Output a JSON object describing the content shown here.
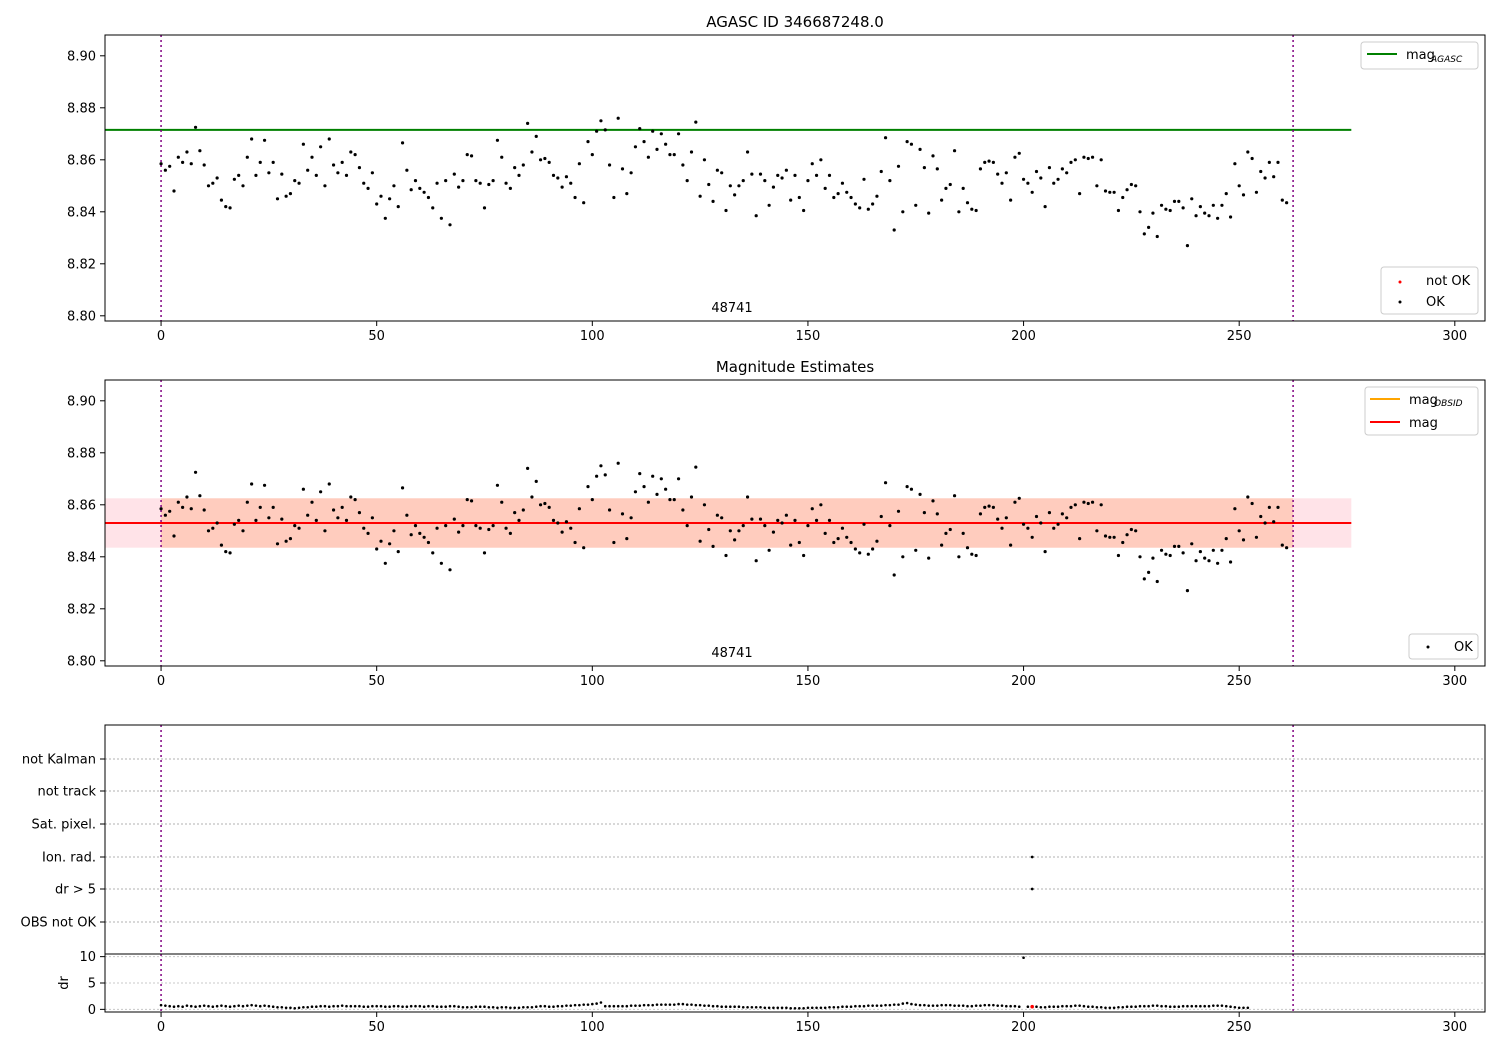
{
  "chart_data": [
    {
      "type": "scatter",
      "title": "AGASC ID 346687248.0",
      "xlabel": "",
      "ylabel": "",
      "xlim": [
        -13,
        307
      ],
      "ylim": [
        8.798,
        8.908
      ],
      "xticks": [
        "0",
        "50",
        "100",
        "150",
        "200",
        "250",
        "300"
      ],
      "yticks": [
        "8.80",
        "8.82",
        "8.84",
        "8.86",
        "8.88",
        "8.90"
      ],
      "annotation": "48741",
      "vlines": [
        0,
        262.5
      ],
      "hline": {
        "name": "mag_AGASC",
        "y": 8.8715,
        "x_range": [
          -13,
          276
        ],
        "color": "#008000"
      },
      "legend_upper": [
        {
          "label": "mag",
          "sub": "AGASC",
          "color": "#008000"
        }
      ],
      "legend_lower": [
        {
          "label": "not OK",
          "color": "#ff0000"
        },
        {
          "label": "OK",
          "color": "#000000"
        }
      ],
      "series_ref": "mag_estimates"
    },
    {
      "type": "scatter",
      "title": "Magnitude Estimates",
      "xlabel": "",
      "ylabel": "",
      "xlim": [
        -13,
        307
      ],
      "ylim": [
        8.798,
        8.908
      ],
      "xticks": [
        "0",
        "50",
        "100",
        "150",
        "200",
        "250",
        "300"
      ],
      "yticks": [
        "8.80",
        "8.82",
        "8.84",
        "8.86",
        "8.88",
        "8.90"
      ],
      "annotation": "48741",
      "vlines": [
        0,
        262.5
      ],
      "mag_line": {
        "y": 8.853,
        "x_range": [
          -13,
          276
        ],
        "color": "#ff0000"
      },
      "band_outer": {
        "y": [
          8.8435,
          8.8625
        ],
        "x_range": [
          -13,
          276
        ],
        "color": "#ffc0cb"
      },
      "band_inner": {
        "y": [
          8.8435,
          8.8625
        ],
        "x_range": [
          0,
          262.5
        ],
        "color": "#ffa070"
      },
      "legend_upper": [
        {
          "label": "mag",
          "sub": "OBSID",
          "color": "#ffa500"
        },
        {
          "label": "mag",
          "sub": "",
          "color": "#ff0000"
        }
      ],
      "legend_lower": [
        {
          "label": "OK",
          "color": "#000000"
        }
      ],
      "series_ref": "mag_estimates"
    },
    {
      "type": "scatter",
      "title": "",
      "xlim": [
        -13,
        307
      ],
      "xticks": [
        "0",
        "50",
        "100",
        "150",
        "200",
        "250",
        "300"
      ],
      "flag_labels": [
        "not Kalman",
        "not track",
        "Sat. pixel.",
        "Ion. rad.",
        "dr > 5",
        "OBS not OK"
      ],
      "flag_points": [
        {
          "flag": "Ion. rad.",
          "x": 202
        },
        {
          "flag": "dr > 5",
          "x": 202
        }
      ],
      "vlines": [
        0,
        262.5
      ]
    },
    {
      "type": "scatter",
      "title": "",
      "xlabel": "",
      "ylabel": "dr",
      "xlim": [
        -13,
        307
      ],
      "ylim": [
        -0.5,
        10.5
      ],
      "xticks": [
        "0",
        "50",
        "100",
        "150",
        "200",
        "250",
        "300"
      ],
      "yticks": [
        "0",
        "5",
        "10"
      ],
      "outlier": {
        "x": 202,
        "y": 9.8,
        "color": "#ff0000"
      },
      "vlines": [
        0,
        262.5
      ],
      "series_ref": "dr_values"
    }
  ],
  "mag_estimates": [
    8.8585,
    8.856,
    8.8575,
    8.848,
    8.861,
    8.859,
    8.863,
    8.8585,
    8.8725,
    8.8635,
    8.858,
    8.85,
    8.851,
    8.853,
    8.8445,
    8.842,
    8.8415,
    8.8525,
    8.854,
    8.85,
    8.861,
    8.868,
    8.854,
    8.859,
    8.8675,
    8.855,
    8.859,
    8.845,
    8.8545,
    8.846,
    8.847,
    8.852,
    8.851,
    8.866,
    8.856,
    8.861,
    8.854,
    8.865,
    8.85,
    8.868,
    8.858,
    8.855,
    8.859,
    8.854,
    8.863,
    8.862,
    8.857,
    8.851,
    8.849,
    8.855,
    8.843,
    8.846,
    8.8375,
    8.845,
    8.85,
    8.842,
    8.8665,
    8.856,
    8.8485,
    8.852,
    8.849,
    8.8475,
    8.8455,
    8.8415,
    8.851,
    8.8375,
    8.852,
    8.835,
    8.8545,
    8.8495,
    8.852,
    8.862,
    8.8615,
    8.852,
    8.851,
    8.8415,
    8.8505,
    8.852,
    8.8675,
    8.861,
    8.851,
    8.849,
    8.857,
    8.854,
    8.858,
    8.874,
    8.863,
    8.869,
    8.86,
    8.8605,
    8.859,
    8.854,
    8.853,
    8.8495,
    8.8535,
    8.851,
    8.8455,
    8.8585,
    8.8435,
    8.867,
    8.862,
    8.871,
    8.875,
    8.8715,
    8.858,
    8.8455,
    8.876,
    8.8565,
    8.847,
    8.855,
    8.865,
    8.872,
    8.867,
    8.861,
    8.871,
    8.864,
    8.87,
    8.866,
    8.862,
    8.862,
    8.87,
    8.858,
    8.852,
    8.863,
    8.8745,
    8.846,
    8.86,
    8.8505,
    8.844,
    8.856,
    8.855,
    8.8405,
    8.85,
    8.8465,
    8.85,
    8.852,
    8.863,
    8.8545,
    8.8385,
    8.8545,
    8.852,
    8.8425,
    8.8495,
    8.854,
    8.853,
    8.856,
    8.8445,
    8.854,
    8.8455,
    8.8405,
    8.852,
    8.8585,
    8.854,
    8.86,
    8.849,
    8.854,
    8.8455,
    8.847,
    8.851,
    8.8475,
    8.8455,
    8.843,
    8.8415,
    8.8525,
    8.841,
    8.843,
    8.846,
    8.8555,
    8.8685,
    8.852,
    8.833,
    8.8575,
    8.84,
    8.867,
    8.866,
    8.8425,
    8.864,
    8.857,
    8.8395,
    8.8615,
    8.8565,
    8.8445,
    8.849,
    8.8505,
    8.8635,
    8.84,
    8.849,
    8.8435,
    8.841,
    8.8405,
    8.8565,
    8.859,
    8.8595,
    8.859,
    8.8545,
    8.851,
    8.855,
    8.8445,
    8.861,
    8.8625,
    8.8525,
    8.851,
    8.8475,
    8.8555,
    8.853,
    8.842,
    8.857,
    8.851,
    8.8525,
    8.8565,
    8.855,
    8.859,
    8.86,
    8.847,
    8.861,
    8.8605,
    8.861,
    8.85,
    8.86,
    8.848,
    8.8475,
    8.8475,
    8.8405,
    8.8455,
    8.8485,
    8.8505,
    8.85,
    8.84,
    8.8315,
    8.834,
    8.8395,
    8.8305,
    8.8425,
    8.841,
    8.8405,
    8.844,
    8.844,
    8.8415,
    8.827,
    8.845,
    8.8385,
    8.842,
    8.8395,
    8.8385,
    8.8425,
    8.8375,
    8.8425,
    8.847,
    8.838,
    8.8585,
    8.85,
    8.8465,
    8.863,
    8.8605,
    8.8475,
    8.8555,
    8.853,
    8.859,
    8.8535,
    8.859,
    8.8445,
    8.8435
  ],
  "dr_values": [
    0.8,
    0.7,
    0.6,
    0.5,
    0.6,
    0.5,
    0.7,
    0.6,
    0.5,
    0.6,
    0.7,
    0.6,
    0.5,
    0.6,
    0.7,
    0.6,
    0.5,
    0.6,
    0.7,
    0.6,
    0.7,
    0.8,
    0.7,
    0.6,
    0.7,
    0.6,
    0.5,
    0.4,
    0.4,
    0.3,
    0.3,
    0.2,
    0.3,
    0.4,
    0.4,
    0.5,
    0.5,
    0.6,
    0.6,
    0.5,
    0.6,
    0.6,
    0.7,
    0.6,
    0.6,
    0.6,
    0.6,
    0.5,
    0.5,
    0.6,
    0.6,
    0.6,
    0.5,
    0.5,
    0.6,
    0.6,
    0.5,
    0.5,
    0.6,
    0.6,
    0.6,
    0.5,
    0.6,
    0.6,
    0.5,
    0.5,
    0.5,
    0.6,
    0.6,
    0.5,
    0.4,
    0.4,
    0.4,
    0.5,
    0.5,
    0.5,
    0.4,
    0.4,
    0.3,
    0.4,
    0.4,
    0.3,
    0.3,
    0.3,
    0.4,
    0.4,
    0.4,
    0.5,
    0.6,
    0.6,
    0.5,
    0.5,
    0.6,
    0.6,
    0.7,
    0.7,
    0.8,
    0.8,
    0.9,
    0.9,
    1.0,
    1.1,
    1.3,
    0.6,
    0.6,
    0.6,
    0.6,
    0.6,
    0.6,
    0.7,
    0.7,
    0.7,
    0.8,
    0.8,
    0.8,
    0.9,
    0.9,
    0.9,
    0.9,
    0.9,
    1.0,
    1.0,
    0.9,
    0.9,
    0.8,
    0.8,
    0.7,
    0.7,
    0.6,
    0.6,
    0.5,
    0.5,
    0.5,
    0.5,
    0.5,
    0.4,
    0.4,
    0.4,
    0.4,
    0.4,
    0.3,
    0.3,
    0.3,
    0.3,
    0.3,
    0.3,
    0.2,
    0.2,
    0.2,
    0.2,
    0.3,
    0.3,
    0.3,
    0.3,
    0.3,
    0.4,
    0.4,
    0.4,
    0.5,
    0.5,
    0.5,
    0.6,
    0.6,
    0.6,
    0.7,
    0.7,
    0.7,
    0.7,
    0.8,
    0.8,
    0.9,
    0.9,
    1.1,
    1.2,
    1.0,
    0.9,
    0.8,
    0.8,
    0.7,
    0.7,
    0.7,
    0.8,
    0.8,
    0.8,
    0.7,
    0.7,
    0.7,
    0.6,
    0.6,
    0.7,
    0.7,
    0.8,
    0.8,
    0.8,
    0.7,
    0.7,
    0.6,
    0.6,
    0.6,
    0.5,
    9.8,
    0.5,
    0.5,
    0.5,
    0.4,
    0.4,
    0.5,
    0.5,
    0.5,
    0.6,
    0.6,
    0.6,
    0.7,
    0.7,
    0.6,
    0.5,
    0.5,
    0.4,
    0.4,
    0.3,
    0.3,
    0.3,
    0.4,
    0.4,
    0.5,
    0.5,
    0.5,
    0.6,
    0.6,
    0.6,
    0.7,
    0.7,
    0.6,
    0.6,
    0.5,
    0.5,
    0.5,
    0.6,
    0.6,
    0.6,
    0.6,
    0.6,
    0.6,
    0.6,
    0.7,
    0.7,
    0.7,
    0.6,
    0.5,
    0.4,
    0.3,
    0.3,
    0.3
  ]
}
